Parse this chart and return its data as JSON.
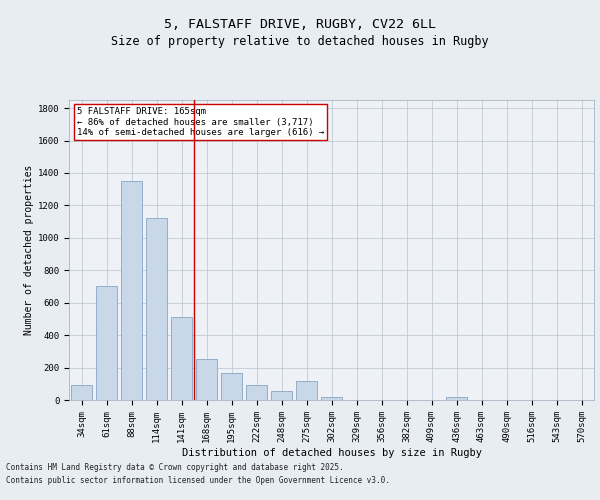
{
  "title1": "5, FALSTAFF DRIVE, RUGBY, CV22 6LL",
  "title2": "Size of property relative to detached houses in Rugby",
  "xlabel": "Distribution of detached houses by size in Rugby",
  "ylabel": "Number of detached properties",
  "categories": [
    "34sqm",
    "61sqm",
    "88sqm",
    "114sqm",
    "141sqm",
    "168sqm",
    "195sqm",
    "222sqm",
    "248sqm",
    "275sqm",
    "302sqm",
    "329sqm",
    "356sqm",
    "382sqm",
    "409sqm",
    "436sqm",
    "463sqm",
    "490sqm",
    "516sqm",
    "543sqm",
    "570sqm"
  ],
  "values": [
    95,
    700,
    1350,
    1120,
    510,
    255,
    165,
    90,
    55,
    120,
    20,
    0,
    0,
    0,
    0,
    20,
    0,
    0,
    0,
    0,
    0
  ],
  "bar_color": "#c8d8e8",
  "bar_edge_color": "#7799bb",
  "vline_x": 4.5,
  "vline_color": "#cc0000",
  "annotation_text": "5 FALSTAFF DRIVE: 165sqm\n← 86% of detached houses are smaller (3,717)\n14% of semi-detached houses are larger (616) →",
  "annotation_box_color": "#ffffff",
  "annotation_box_edge_color": "#cc0000",
  "ylim": [
    0,
    1850
  ],
  "yticks": [
    0,
    200,
    400,
    600,
    800,
    1000,
    1200,
    1400,
    1600,
    1800
  ],
  "bg_color": "#e8edf2",
  "plot_bg_color": "#eef2f6",
  "footer1": "Contains HM Land Registry data © Crown copyright and database right 2025.",
  "footer2": "Contains public sector information licensed under the Open Government Licence v3.0.",
  "title1_fontsize": 9.5,
  "title2_fontsize": 8.5,
  "xlabel_fontsize": 7.5,
  "ylabel_fontsize": 7,
  "tick_fontsize": 6.5,
  "annotation_fontsize": 6.5,
  "footer_fontsize": 5.5
}
